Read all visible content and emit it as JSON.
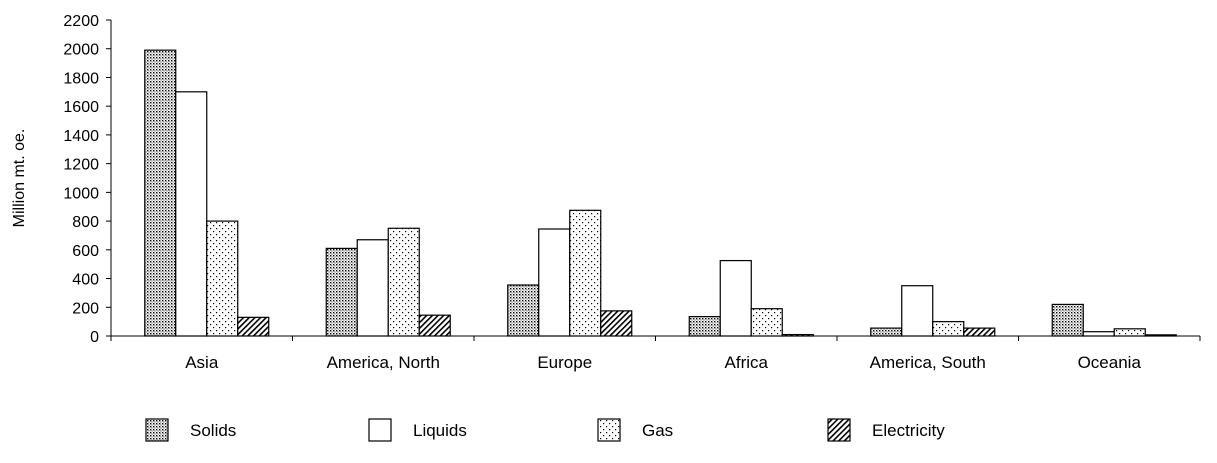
{
  "chart_data": {
    "type": "bar",
    "categories": [
      "Asia",
      "America, North",
      "Europe",
      "Africa",
      "America, South",
      "Oceania"
    ],
    "series": [
      {
        "name": "Solids",
        "values": [
          1990,
          610,
          355,
          135,
          55,
          220
        ],
        "pattern": "dense-dots"
      },
      {
        "name": "Liquids",
        "values": [
          1700,
          670,
          745,
          525,
          350,
          30
        ],
        "pattern": "white"
      },
      {
        "name": "Gas",
        "values": [
          800,
          750,
          875,
          190,
          100,
          50
        ],
        "pattern": "sparse-dots"
      },
      {
        "name": "Electricity",
        "values": [
          130,
          145,
          175,
          10,
          55,
          8
        ],
        "pattern": "diagonal-hatch"
      }
    ],
    "title": "",
    "xlabel": "",
    "ylabel": "Million mt. oe.",
    "ylim": [
      0,
      2200
    ],
    "yticks": [
      0,
      200,
      400,
      600,
      800,
      1000,
      1200,
      1400,
      1600,
      1800,
      2000,
      2200
    ],
    "grid": false,
    "legend_position": "bottom"
  }
}
